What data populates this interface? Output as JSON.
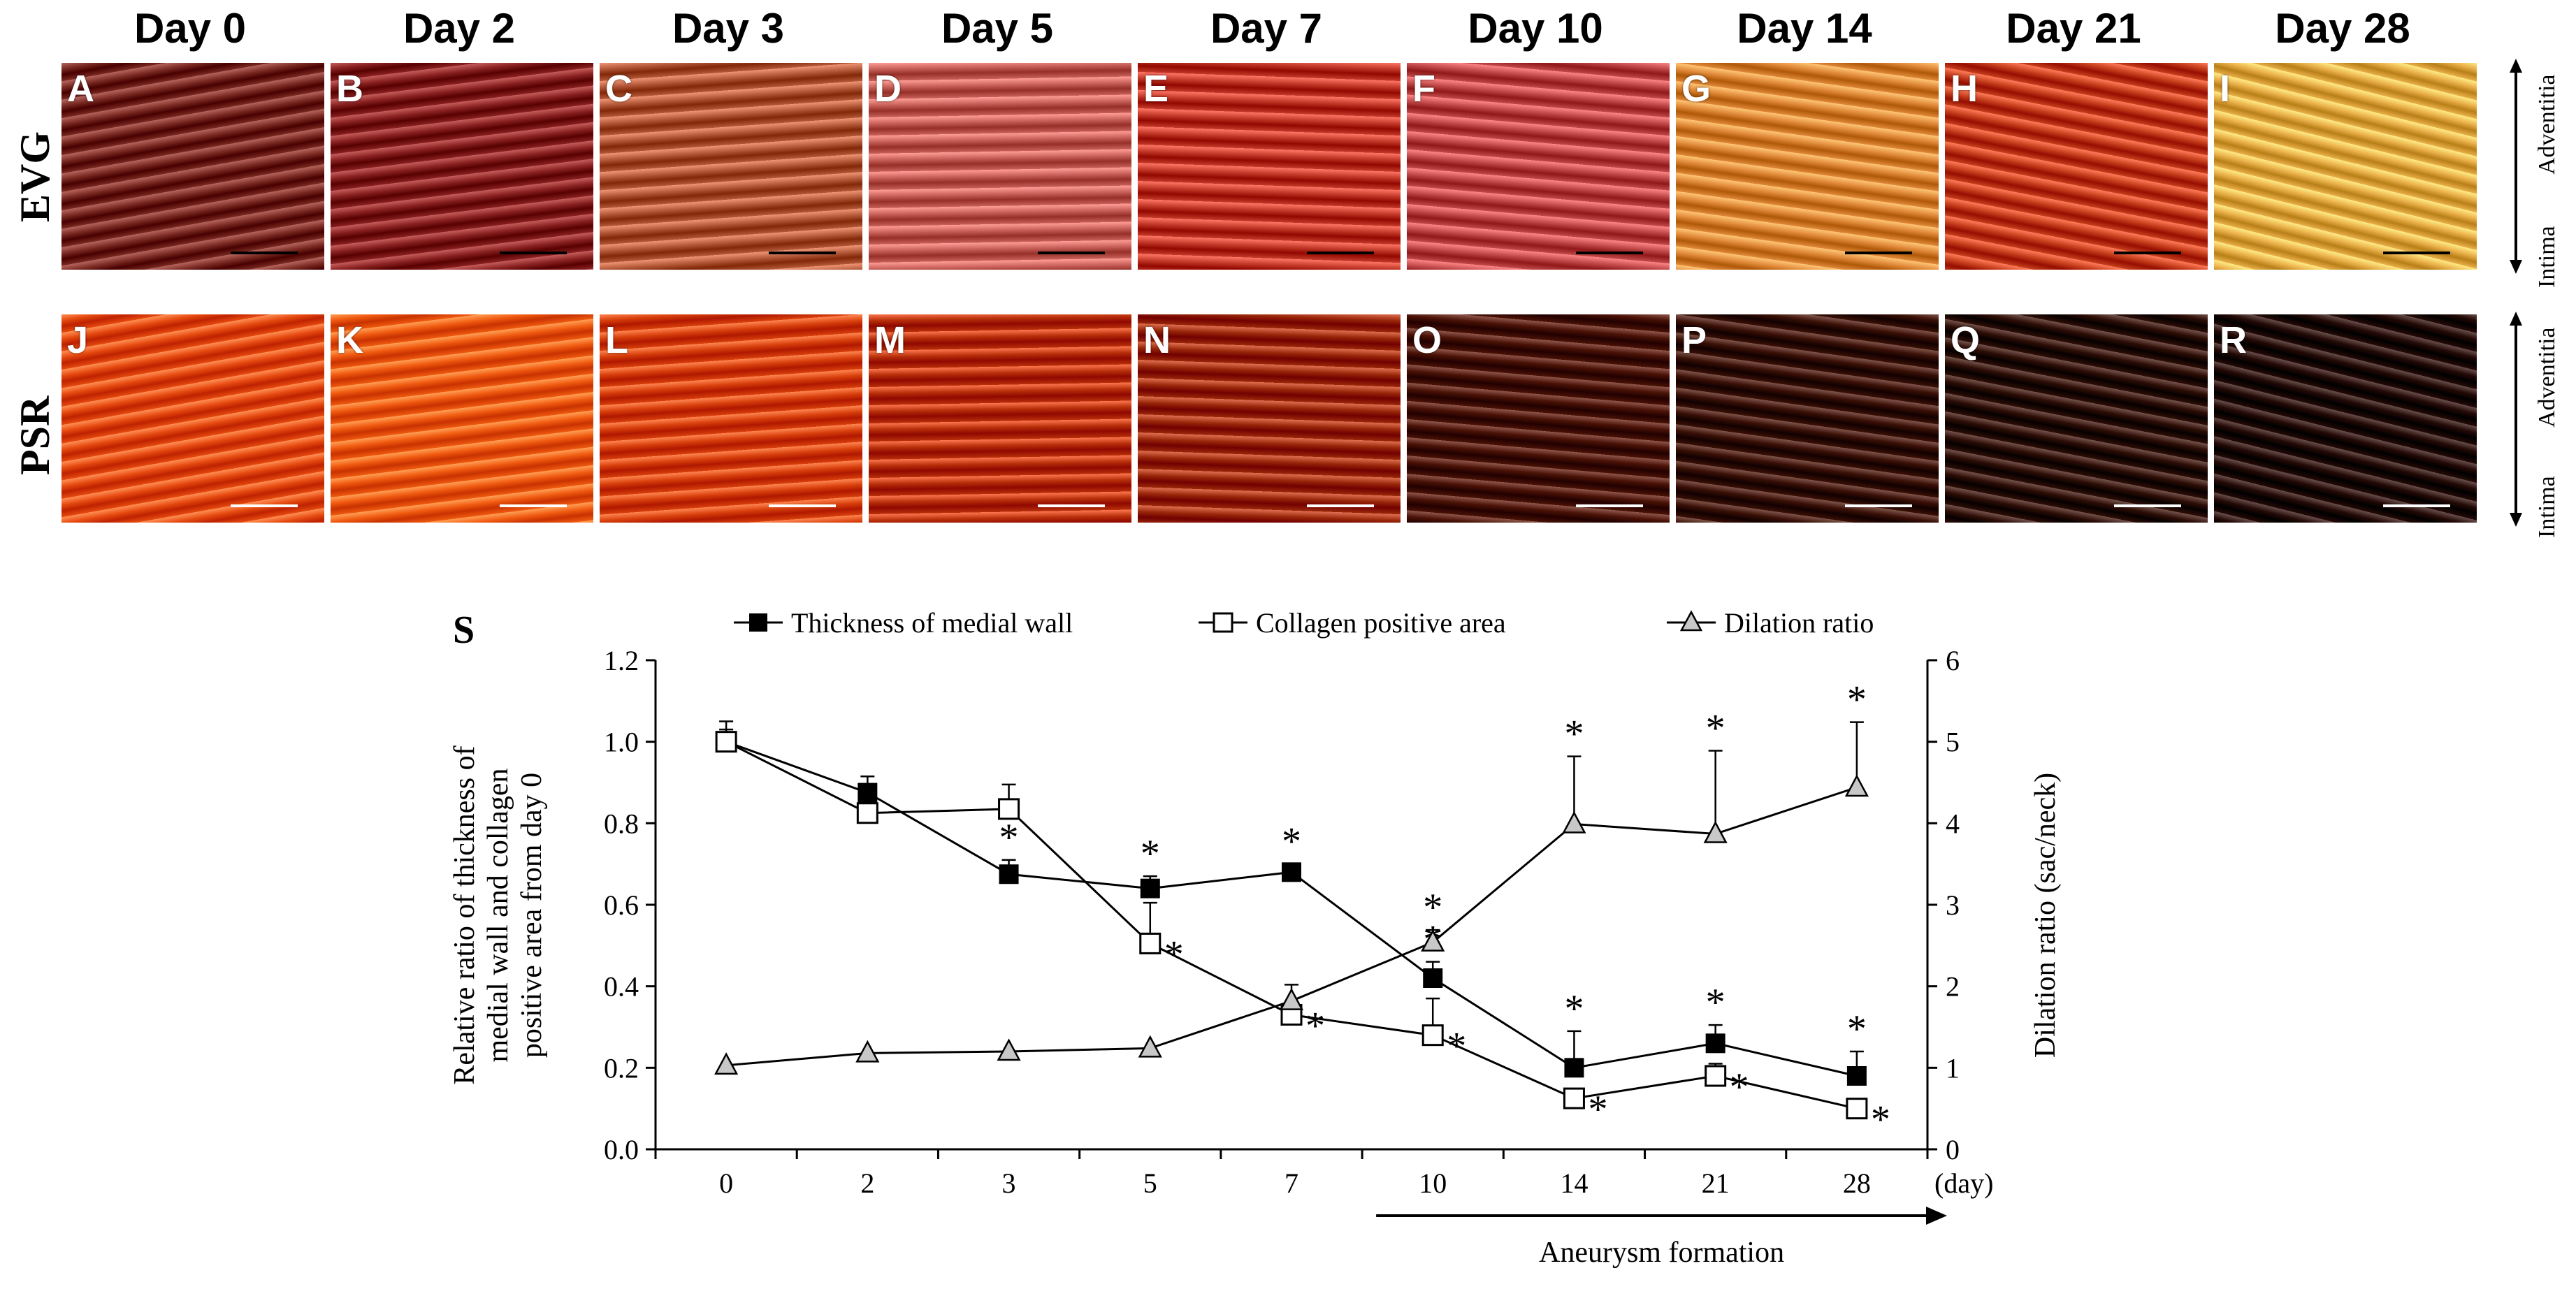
{
  "figure": {
    "days": [
      "Day 0",
      "Day 2",
      "Day 3",
      "Day 5",
      "Day 7",
      "Day 10",
      "Day 14",
      "Day 21",
      "Day 28"
    ],
    "row_labels": {
      "evg": "EVG",
      "psr": "PSR"
    },
    "side_labels": {
      "top": "Adventitia",
      "bottom": "Intima"
    },
    "evg_panels": [
      {
        "letter": "A",
        "tone": "#7a2a22"
      },
      {
        "letter": "B",
        "tone": "#8a2222"
      },
      {
        "letter": "C",
        "tone": "#b45a3a"
      },
      {
        "letter": "D",
        "tone": "#c8615a"
      },
      {
        "letter": "E",
        "tone": "#c43a2a"
      },
      {
        "letter": "F",
        "tone": "#c24a4a"
      },
      {
        "letter": "G",
        "tone": "#e08a3a"
      },
      {
        "letter": "H",
        "tone": "#c8401e"
      },
      {
        "letter": "I",
        "tone": "#eab04a"
      }
    ],
    "psr_panels": [
      {
        "letter": "J",
        "tone": "#e64a10"
      },
      {
        "letter": "K",
        "tone": "#f05a10"
      },
      {
        "letter": "L",
        "tone": "#d8400c"
      },
      {
        "letter": "M",
        "tone": "#b8300a"
      },
      {
        "letter": "N",
        "tone": "#9a280a"
      },
      {
        "letter": "O",
        "tone": "#4a1206"
      },
      {
        "letter": "P",
        "tone": "#3a1006"
      },
      {
        "letter": "Q",
        "tone": "#2e0e06"
      },
      {
        "letter": "R",
        "tone": "#240a06"
      }
    ]
  },
  "chart_data": {
    "type": "line",
    "panel_label": "S",
    "categories": [
      "0",
      "2",
      "3",
      "5",
      "7",
      "10",
      "14",
      "21",
      "28"
    ],
    "x_unit": "(day)",
    "ylabel_left": [
      "Relative ratio of thickness of",
      "medial wall and collagen",
      "positive area from day 0"
    ],
    "ylabel_right": "Dilation ratio (sac/neck)",
    "ylim_left": [
      0,
      1.2
    ],
    "ylim_right": [
      0,
      6
    ],
    "left_ticks": [
      "0.0",
      "0.2",
      "0.4",
      "0.6",
      "0.8",
      "1.0",
      "1.2"
    ],
    "right_ticks": [
      "0",
      "1",
      "2",
      "3",
      "4",
      "5",
      "6"
    ],
    "series": [
      {
        "name": "Thickness of medial wall",
        "axis": "left",
        "marker": "filled-square",
        "values": [
          1.0,
          0.875,
          0.675,
          0.64,
          0.68,
          0.42,
          0.2,
          0.26,
          0.18
        ],
        "errors": [
          0.05,
          0.04,
          0.035,
          0.03,
          0.02,
          0.04,
          0.09,
          0.045,
          0.06
        ],
        "significant": [
          false,
          false,
          true,
          true,
          true,
          true,
          true,
          true,
          true
        ]
      },
      {
        "name": "Collagen positive area",
        "axis": "left",
        "marker": "open-square",
        "values": [
          1.0,
          0.825,
          0.835,
          0.505,
          0.33,
          0.28,
          0.125,
          0.18,
          0.1
        ],
        "errors": [
          0.03,
          0.03,
          0.06,
          0.1,
          0.03,
          0.09,
          0.02,
          0.03,
          0.02
        ],
        "significant": [
          false,
          false,
          false,
          true,
          true,
          true,
          true,
          true,
          true
        ]
      },
      {
        "name": "Dilation ratio",
        "axis": "right",
        "marker": "triangle",
        "values": [
          1.03,
          1.18,
          1.2,
          1.24,
          1.82,
          2.54,
          3.99,
          3.87,
          4.44
        ],
        "errors": [
          0,
          0,
          0,
          0,
          0.2,
          0.15,
          0.83,
          1.02,
          0.8
        ],
        "significant": [
          false,
          false,
          false,
          false,
          false,
          true,
          true,
          true,
          true
        ]
      }
    ],
    "annotation": {
      "arrow_label": "Aneurysm formation",
      "arrow_from_category": "10",
      "asterisk": "*"
    }
  }
}
